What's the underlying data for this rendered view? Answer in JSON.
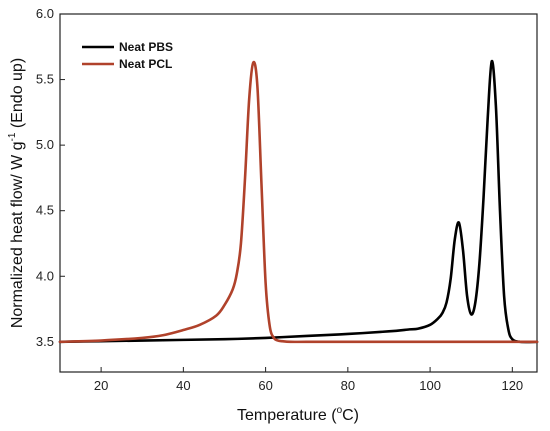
{
  "chart_data": {
    "type": "line",
    "title": "",
    "xlabel_main": "Temperature (",
    "xlabel_sup": "o",
    "xlabel_end": "C)",
    "ylabel_main": "Normalized heat flow/ W g",
    "ylabel_sup": "-1",
    "ylabel_end": " (Endo up)",
    "xlim": [
      10,
      126
    ],
    "ylim": [
      3.27,
      6.0
    ],
    "x_ticks": [
      20,
      40,
      60,
      80,
      100,
      120
    ],
    "y_ticks": [
      3.5,
      4.0,
      4.5,
      5.0,
      5.5,
      6.0
    ],
    "x_tick_labels": [
      "20",
      "40",
      "60",
      "80",
      "100",
      "120"
    ],
    "y_tick_labels": [
      "3.5",
      "4.0",
      "4.5",
      "5.0",
      "5.5",
      "6.0"
    ],
    "grid": false,
    "legend_position": "top-left",
    "series": [
      {
        "name": "Neat PBS",
        "color": "#000000",
        "x": [
          10,
          20,
          30,
          40,
          50,
          60,
          70,
          80,
          90,
          95,
          97,
          100,
          102,
          103,
          104,
          105,
          106,
          107,
          108,
          109,
          110,
          111,
          112,
          113,
          114,
          115,
          116,
          117,
          118,
          119,
          120,
          122,
          126
        ],
        "y": [
          3.5,
          3.505,
          3.51,
          3.515,
          3.52,
          3.53,
          3.545,
          3.56,
          3.58,
          3.595,
          3.6,
          3.63,
          3.68,
          3.72,
          3.8,
          3.98,
          4.28,
          4.41,
          4.2,
          3.85,
          3.71,
          3.8,
          4.1,
          4.6,
          5.2,
          5.64,
          5.3,
          4.5,
          3.85,
          3.6,
          3.52,
          3.5,
          3.5
        ]
      },
      {
        "name": "Neat PCL",
        "color": "#B0422B",
        "x": [
          10,
          20,
          30,
          35,
          40,
          44,
          48,
          50,
          52,
          53,
          54,
          55,
          56,
          57,
          58,
          59,
          60,
          61,
          62,
          63,
          64,
          66,
          70,
          80,
          100,
          126
        ],
        "y": [
          3.5,
          3.51,
          3.53,
          3.55,
          3.59,
          3.63,
          3.7,
          3.78,
          3.9,
          4.02,
          4.25,
          4.75,
          5.35,
          5.63,
          5.45,
          4.7,
          3.95,
          3.62,
          3.53,
          3.51,
          3.505,
          3.5,
          3.5,
          3.5,
          3.5,
          3.5
        ]
      }
    ]
  }
}
